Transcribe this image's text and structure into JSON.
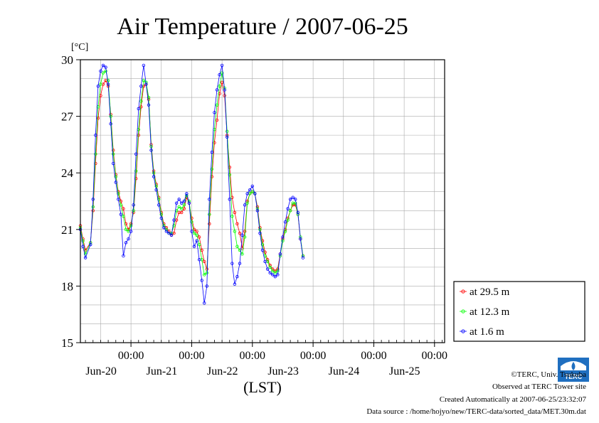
{
  "chart_data": {
    "type": "line",
    "title": "Air Temperature / 2007-06-25",
    "ylabel": "[°C]",
    "xlabel": "(LST)",
    "ylim": [
      15,
      30
    ],
    "yticks": [
      15,
      18,
      21,
      24,
      27,
      30
    ],
    "x_start_hours": 4,
    "x_end_hours": 148,
    "xticks": [
      {
        "hours": 24,
        "time": "00:00",
        "date": "Jun-20"
      },
      {
        "hours": 48,
        "time": "00:00",
        "date": "Jun-21"
      },
      {
        "hours": 72,
        "time": "00:00",
        "date": "Jun-22"
      },
      {
        "hours": 96,
        "time": "00:00",
        "date": "Jun-23"
      },
      {
        "hours": 120,
        "time": "00:00",
        "date": "Jun-24"
      },
      {
        "hours": 144,
        "time": "00:00",
        "date": "Jun-25"
      }
    ],
    "grid": true,
    "legend_position": "bottom-right",
    "series": [
      {
        "name": "at 29.5 m",
        "color": "#ff0000",
        "points": [
          [
            4,
            21.2
          ],
          [
            5,
            20.5
          ],
          [
            6,
            19.9
          ],
          [
            8,
            20.3
          ],
          [
            9,
            22.0
          ],
          [
            10,
            24.5
          ],
          [
            11,
            26.9
          ],
          [
            12,
            28.1
          ],
          [
            13,
            28.7
          ],
          [
            14,
            28.9
          ],
          [
            15,
            28.6
          ],
          [
            16,
            27.1
          ],
          [
            17,
            25.2
          ],
          [
            18,
            23.9
          ],
          [
            19,
            23.0
          ],
          [
            20,
            22.5
          ],
          [
            21,
            22.1
          ],
          [
            22,
            21.3
          ],
          [
            23,
            21.0
          ],
          [
            24,
            21.3
          ],
          [
            25,
            21.9
          ],
          [
            26,
            23.7
          ],
          [
            27,
            26.0
          ],
          [
            28,
            27.5
          ],
          [
            29,
            28.6
          ],
          [
            30,
            28.7
          ],
          [
            31,
            27.9
          ],
          [
            32,
            25.5
          ],
          [
            33,
            24.1
          ],
          [
            34,
            23.4
          ],
          [
            35,
            22.7
          ],
          [
            36,
            21.9
          ],
          [
            37,
            21.3
          ],
          [
            38,
            21.1
          ],
          [
            39,
            20.9
          ],
          [
            40,
            20.7
          ],
          [
            41,
            20.8
          ],
          [
            42,
            21.5
          ],
          [
            43,
            21.9
          ],
          [
            44,
            21.9
          ],
          [
            45,
            22.1
          ],
          [
            46,
            22.7
          ],
          [
            47,
            22.4
          ],
          [
            48,
            21.6
          ],
          [
            49,
            21.0
          ],
          [
            50,
            20.9
          ],
          [
            51,
            20.6
          ],
          [
            52,
            19.9
          ],
          [
            53,
            19.3
          ],
          [
            54,
            18.9
          ],
          [
            55,
            21.3
          ],
          [
            56,
            23.8
          ],
          [
            57,
            25.6
          ],
          [
            58,
            26.8
          ],
          [
            59,
            28.2
          ],
          [
            60,
            28.8
          ],
          [
            61,
            28.1
          ],
          [
            62,
            26.0
          ],
          [
            63,
            24.3
          ],
          [
            64,
            22.7
          ],
          [
            65,
            21.9
          ],
          [
            66,
            21.3
          ],
          [
            67,
            20.8
          ],
          [
            68,
            20.0
          ],
          [
            69,
            20.9
          ],
          [
            70,
            22.5
          ],
          [
            71,
            22.9
          ],
          [
            72,
            23.0
          ],
          [
            73,
            22.9
          ],
          [
            74,
            22.2
          ],
          [
            75,
            21.1
          ],
          [
            76,
            20.4
          ],
          [
            77,
            19.8
          ],
          [
            78,
            19.4
          ],
          [
            79,
            19.1
          ],
          [
            80,
            18.9
          ],
          [
            81,
            18.8
          ],
          [
            82,
            18.9
          ],
          [
            83,
            19.7
          ],
          [
            84,
            20.5
          ],
          [
            85,
            21.0
          ],
          [
            86,
            21.6
          ],
          [
            87,
            22.0
          ],
          [
            88,
            22.3
          ],
          [
            89,
            22.3
          ],
          [
            90,
            21.8
          ],
          [
            91,
            20.5
          ],
          [
            92,
            19.6
          ]
        ]
      },
      {
        "name": "at 12.3 m",
        "color": "#00ff00",
        "points": [
          [
            4,
            21.1
          ],
          [
            5,
            20.4
          ],
          [
            6,
            19.7
          ],
          [
            8,
            20.3
          ],
          [
            9,
            22.2
          ],
          [
            10,
            25.0
          ],
          [
            11,
            27.5
          ],
          [
            12,
            28.7
          ],
          [
            13,
            29.3
          ],
          [
            14,
            29.4
          ],
          [
            15,
            28.9
          ],
          [
            16,
            27.0
          ],
          [
            17,
            25.0
          ],
          [
            18,
            23.8
          ],
          [
            19,
            22.9
          ],
          [
            20,
            22.3
          ],
          [
            21,
            21.7
          ],
          [
            22,
            21.0
          ],
          [
            23,
            20.9
          ],
          [
            24,
            21.2
          ],
          [
            25,
            22.0
          ],
          [
            26,
            24.1
          ],
          [
            27,
            26.3
          ],
          [
            28,
            27.8
          ],
          [
            29,
            28.9
          ],
          [
            30,
            28.8
          ],
          [
            31,
            28.0
          ],
          [
            32,
            25.4
          ],
          [
            33,
            24.0
          ],
          [
            34,
            23.3
          ],
          [
            35,
            22.6
          ],
          [
            36,
            21.8
          ],
          [
            37,
            21.2
          ],
          [
            38,
            21.0
          ],
          [
            39,
            20.8
          ],
          [
            40,
            20.8
          ],
          [
            41,
            21.2
          ],
          [
            42,
            22.0
          ],
          [
            43,
            22.2
          ],
          [
            44,
            22.1
          ],
          [
            45,
            22.3
          ],
          [
            46,
            22.8
          ],
          [
            47,
            22.5
          ],
          [
            48,
            21.4
          ],
          [
            49,
            20.8
          ],
          [
            50,
            20.7
          ],
          [
            51,
            20.2
          ],
          [
            52,
            19.4
          ],
          [
            53,
            18.6
          ],
          [
            54,
            18.7
          ],
          [
            55,
            21.8
          ],
          [
            56,
            24.2
          ],
          [
            57,
            26.3
          ],
          [
            58,
            27.6
          ],
          [
            59,
            28.6
          ],
          [
            60,
            29.3
          ],
          [
            61,
            28.5
          ],
          [
            62,
            26.2
          ],
          [
            63,
            23.9
          ],
          [
            64,
            21.7
          ],
          [
            65,
            20.9
          ],
          [
            66,
            20.1
          ],
          [
            67,
            19.9
          ],
          [
            68,
            19.7
          ],
          [
            69,
            20.6
          ],
          [
            70,
            22.4
          ],
          [
            71,
            22.9
          ],
          [
            72,
            23.0
          ],
          [
            73,
            22.9
          ],
          [
            74,
            22.1
          ],
          [
            75,
            21.0
          ],
          [
            76,
            20.2
          ],
          [
            77,
            19.6
          ],
          [
            78,
            19.3
          ],
          [
            79,
            19.0
          ],
          [
            80,
            18.8
          ],
          [
            81,
            18.7
          ],
          [
            82,
            18.8
          ],
          [
            83,
            19.6
          ],
          [
            84,
            20.4
          ],
          [
            85,
            20.9
          ],
          [
            86,
            21.5
          ],
          [
            87,
            22.0
          ],
          [
            88,
            22.4
          ],
          [
            89,
            22.4
          ],
          [
            90,
            21.8
          ],
          [
            91,
            20.6
          ],
          [
            92,
            19.6
          ]
        ]
      },
      {
        "name": "at 1.6 m",
        "color": "#0000ff",
        "points": [
          [
            4,
            21.0
          ],
          [
            5,
            20.1
          ],
          [
            6,
            19.5
          ],
          [
            8,
            20.2
          ],
          [
            9,
            22.6
          ],
          [
            10,
            26.0
          ],
          [
            11,
            28.6
          ],
          [
            12,
            29.4
          ],
          [
            13,
            29.7
          ],
          [
            14,
            29.6
          ],
          [
            15,
            28.7
          ],
          [
            16,
            26.6
          ],
          [
            17,
            24.5
          ],
          [
            18,
            23.5
          ],
          [
            19,
            22.6
          ],
          [
            20,
            21.8
          ],
          [
            21,
            19.6
          ],
          [
            22,
            20.3
          ],
          [
            23,
            20.5
          ],
          [
            24,
            20.9
          ],
          [
            25,
            22.3
          ],
          [
            26,
            25.0
          ],
          [
            27,
            27.4
          ],
          [
            28,
            28.6
          ],
          [
            29,
            29.7
          ],
          [
            30,
            28.7
          ],
          [
            31,
            27.6
          ],
          [
            32,
            25.2
          ],
          [
            33,
            23.8
          ],
          [
            34,
            23.1
          ],
          [
            35,
            22.3
          ],
          [
            36,
            21.6
          ],
          [
            37,
            21.1
          ],
          [
            38,
            20.9
          ],
          [
            39,
            20.8
          ],
          [
            40,
            20.7
          ],
          [
            41,
            21.5
          ],
          [
            42,
            22.4
          ],
          [
            43,
            22.6
          ],
          [
            44,
            22.4
          ],
          [
            45,
            22.5
          ],
          [
            46,
            22.9
          ],
          [
            47,
            22.4
          ],
          [
            48,
            20.9
          ],
          [
            49,
            20.1
          ],
          [
            50,
            20.4
          ],
          [
            51,
            19.4
          ],
          [
            52,
            18.3
          ],
          [
            53,
            17.1
          ],
          [
            54,
            18.0
          ],
          [
            55,
            22.6
          ],
          [
            56,
            25.1
          ],
          [
            57,
            27.2
          ],
          [
            58,
            28.4
          ],
          [
            59,
            29.2
          ],
          [
            60,
            29.7
          ],
          [
            61,
            28.4
          ],
          [
            62,
            25.9
          ],
          [
            63,
            22.6
          ],
          [
            64,
            19.2
          ],
          [
            65,
            18.1
          ],
          [
            66,
            18.5
          ],
          [
            67,
            19.2
          ],
          [
            68,
            20.7
          ],
          [
            69,
            22.3
          ],
          [
            70,
            22.9
          ],
          [
            71,
            23.1
          ],
          [
            72,
            23.3
          ],
          [
            73,
            22.9
          ],
          [
            74,
            22.0
          ],
          [
            75,
            20.8
          ],
          [
            76,
            19.9
          ],
          [
            77,
            19.3
          ],
          [
            78,
            18.9
          ],
          [
            79,
            18.7
          ],
          [
            80,
            18.6
          ],
          [
            81,
            18.5
          ],
          [
            82,
            18.6
          ],
          [
            83,
            19.7
          ],
          [
            84,
            20.6
          ],
          [
            85,
            21.4
          ],
          [
            86,
            22.1
          ],
          [
            87,
            22.6
          ],
          [
            88,
            22.7
          ],
          [
            89,
            22.6
          ],
          [
            90,
            21.9
          ],
          [
            91,
            20.5
          ],
          [
            92,
            19.5
          ]
        ]
      }
    ]
  },
  "footer": {
    "copyright": "©TERC, Univ. Tsukuba",
    "observed": "Observed at TERC Tower site",
    "created": "Created Automatically at 2007-06-25/23:32:07",
    "source": "Data source : /home/hojyo/new/TERC-data/sorted_data/MET.30m.dat",
    "logo_text": "TERC"
  }
}
